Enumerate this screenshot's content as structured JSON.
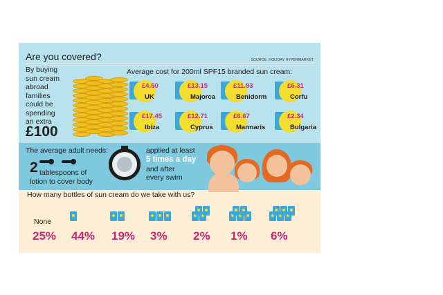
{
  "title": "Are you covered?",
  "source": "SOURCE: HOLIDAY HYPERMARKET",
  "intro": {
    "text_lines": [
      "By buying",
      "sun cream",
      "abroad",
      "families",
      "could be",
      "spending",
      "an extra"
    ],
    "amount": "£100"
  },
  "average_cost_title": "Average cost for  200ml SPF15 branded sun cream:",
  "prices": [
    {
      "destination": "UK",
      "amount": "£4.50"
    },
    {
      "destination": "Majorca",
      "amount": "£13.15"
    },
    {
      "destination": "Benidorm",
      "amount": "£11.93"
    },
    {
      "destination": "Corfu",
      "amount": "£6.31"
    },
    {
      "destination": "Ibiza",
      "amount": "£17.45"
    },
    {
      "destination": "Cyprus",
      "amount": "£12.71"
    },
    {
      "destination": "Marmaris",
      "amount": "£6.67"
    },
    {
      "destination": "Bulgaria",
      "amount": "£2.34"
    }
  ],
  "adult": {
    "heading": "The average adult needs:",
    "tablespoons_number": "2",
    "tablespoons_text": "tablespoons of",
    "tablespoons_text2": "lotion to cover body",
    "applied": "applied at least",
    "times_per_day": "5 times a day",
    "after": "and after",
    "swim": "every swim"
  },
  "bottles_question": "How many bottles of sun cream do we take with us?",
  "bottle_stats": [
    {
      "label": "None",
      "bottles": 0,
      "percent": "25%"
    },
    {
      "label": "",
      "bottles": 1,
      "percent": "44%"
    },
    {
      "label": "",
      "bottles": 2,
      "percent": "19%"
    },
    {
      "label": "",
      "bottles": 3,
      "percent": "3%"
    },
    {
      "label": "",
      "bottles": 4,
      "percent": "2%"
    },
    {
      "label": "",
      "bottles": 5,
      "percent": "1%"
    },
    {
      "label": "",
      "bottles": 6,
      "percent": "6%"
    }
  ],
  "colors": {
    "sky": "#b7e2ee",
    "sea": "#7fc9de",
    "sand": "#fdeed5",
    "accent": "#c72a73",
    "bottle": "#3aa8db",
    "sun": "#f3dd2f",
    "coin": "#f2c01c"
  },
  "icons": [
    "coin-stack-icon",
    "sun-cream-bottle-icon",
    "sun-icon",
    "spoon-icon",
    "timer-icon",
    "family-illustration"
  ]
}
